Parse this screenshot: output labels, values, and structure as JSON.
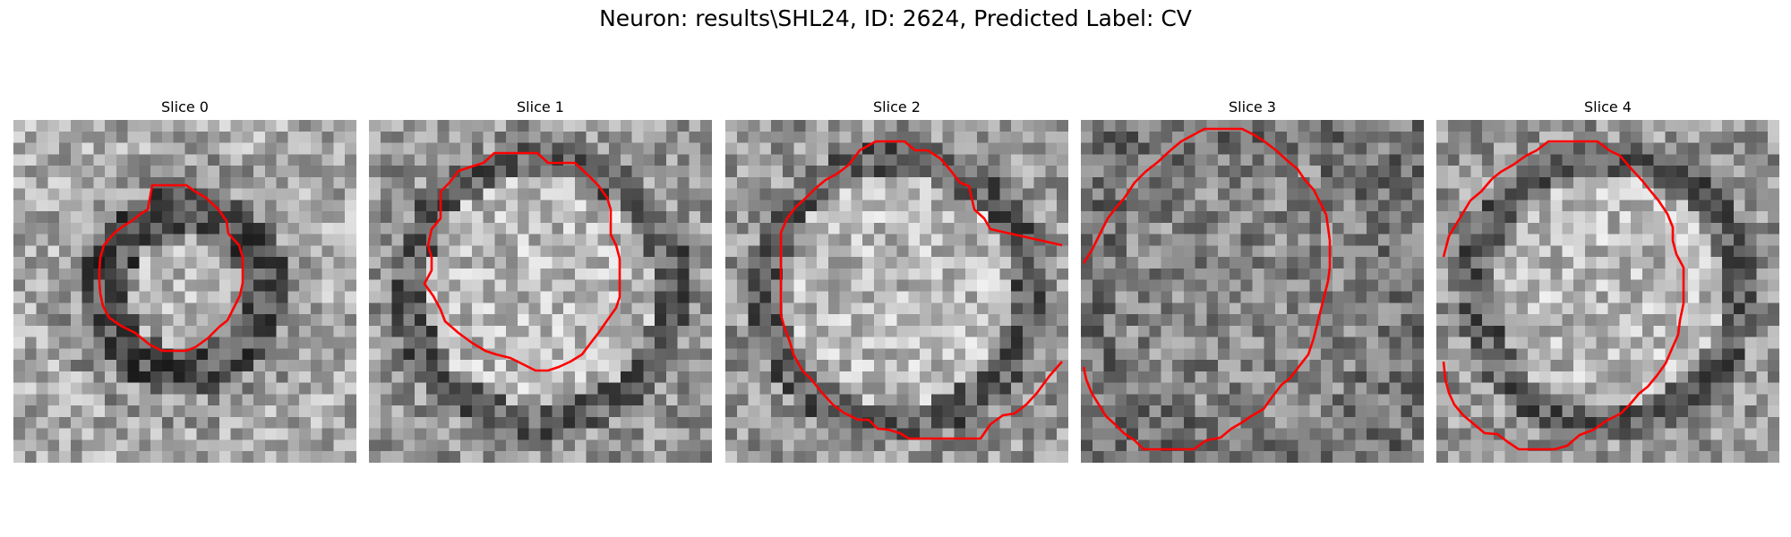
{
  "figure": {
    "title": "Neuron: results\\SHL24, ID: 2624, Predicted Label: CV"
  },
  "panels": [
    {
      "title": "Slice 0",
      "contour_color": "#ff0000",
      "brightness": "dark-ring"
    },
    {
      "title": "Slice 1",
      "contour_color": "#ff0000",
      "brightness": "bright-center"
    },
    {
      "title": "Slice 2",
      "contour_color": "#ff0000",
      "brightness": "bright-center"
    },
    {
      "title": "Slice 3",
      "contour_color": "#ff0000",
      "brightness": "mixed"
    },
    {
      "title": "Slice 4",
      "contour_color": "#ff0000",
      "brightness": "bright-center"
    }
  ],
  "colormap": "gray"
}
